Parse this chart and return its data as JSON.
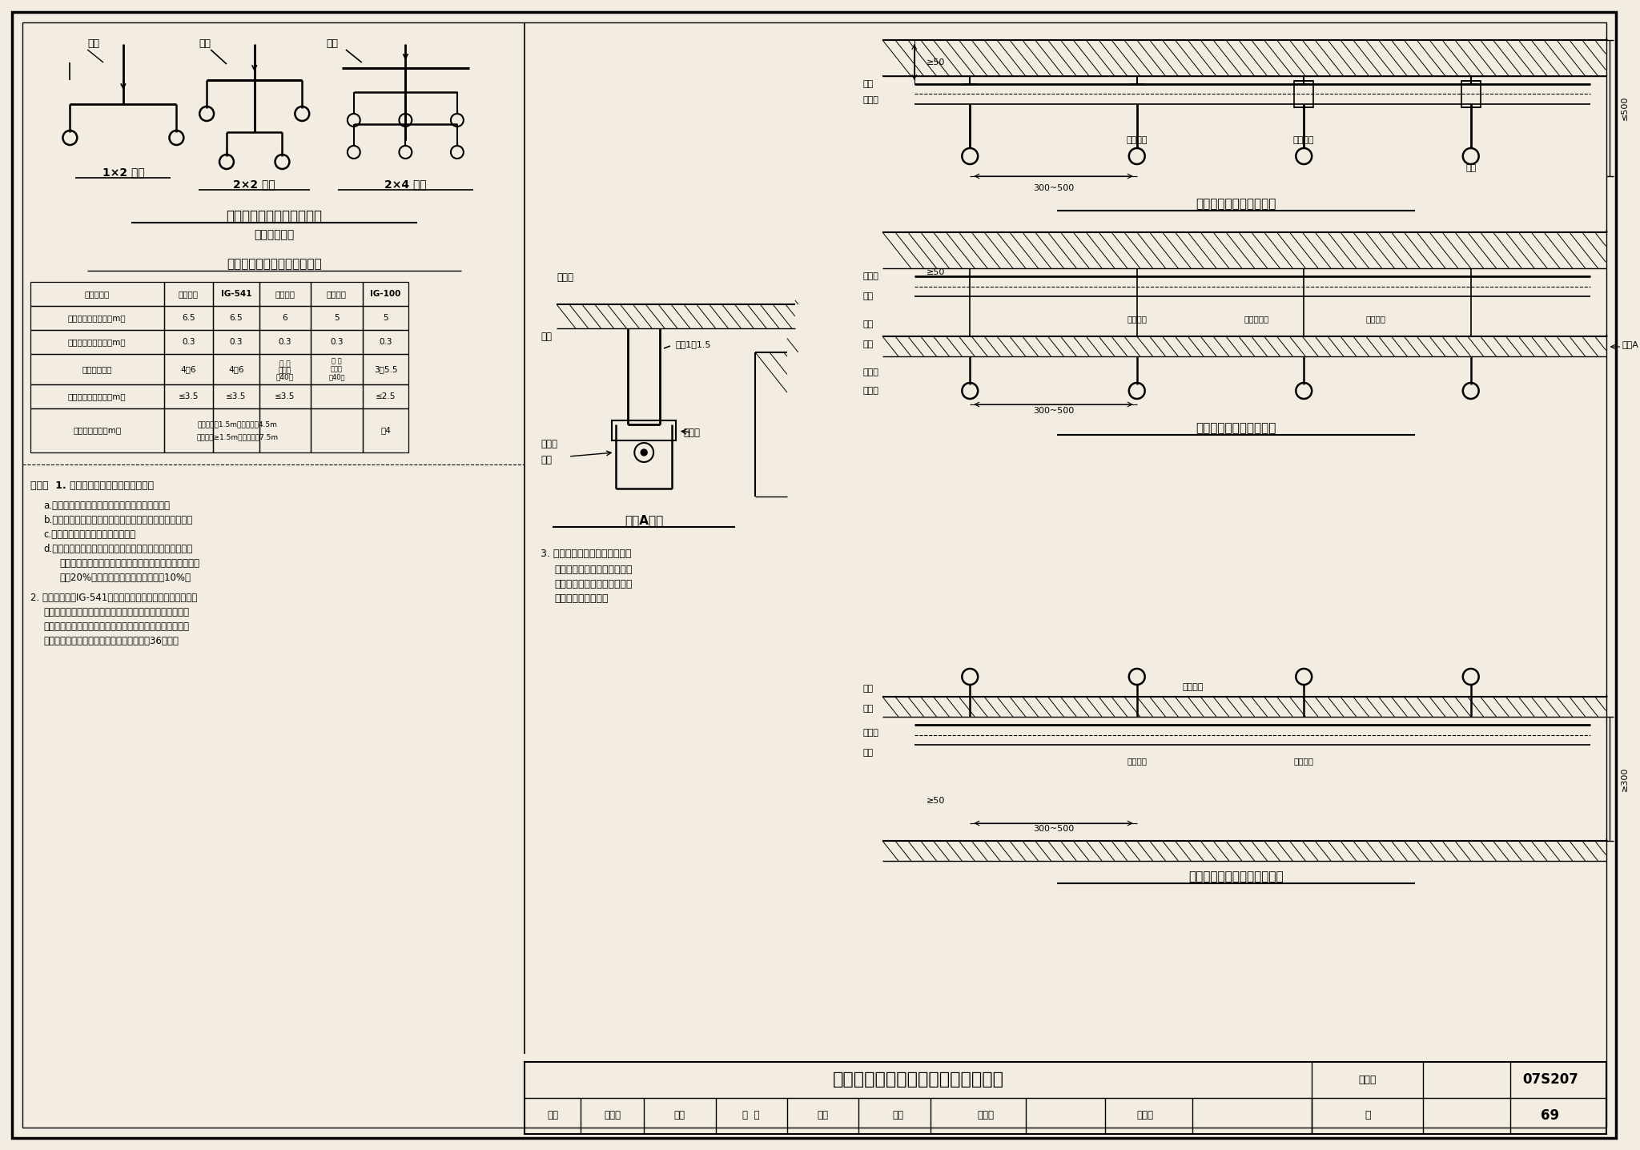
{
  "page_title": "全淹没气体灭火系统喷嘴布置与安装",
  "atlas_no": "07S207",
  "page_no": "69",
  "bg_color": "#f2ede0",
  "border_color": "#000000",
  "diagram_title1": "全淹没系统喷嘴布置示意图",
  "diagram_subtitle1": "（均衡管网）",
  "diagram_title2": "全淹没系统喷嘴布置主要参数",
  "diagram_title3": "节点A详图",
  "diagram_title4": "防护区无吊顶喷嘴安装图",
  "diagram_title5": "防护区有吊顶喷嘴安装图",
  "diagram_title6": "防护区架空地板内喷嘴安装图",
  "layout_labels": [
    "1×2 布置",
    "2×2 布置",
    "2×4 布置"
  ],
  "table_headers": [
    "灭火剂种类",
    "七氟丙烷",
    "IG-541",
    "三氟甲烷",
    "二氧化碳",
    "IG-100"
  ],
  "table_col_widths": [
    168,
    62,
    58,
    65,
    65,
    58
  ],
  "table_rows": [
    [
      "喷嘴最大保护高度（m）",
      "6.5",
      "6.5",
      "6",
      "5",
      "5"
    ],
    [
      "喷嘴最小保护高度（m）",
      "0.3",
      "0.3",
      "0.3",
      "0.3",
      "0.3"
    ],
    [
      "喷嘴布置间距",
      "4～6",
      "4～6",
      "4～6",
      "详 见\n本图集\n第40页",
      "3～5.5"
    ],
    [
      "喷嘴至墙面的距离（m）",
      "≤3.5",
      "≤3.5",
      "≤3.5",
      "",
      "≤2.5"
    ],
    [
      "喷嘴保护半径（m）",
      "安装高度＜1.5m时不宜大于4.5m\n安装高度≥1.5m时不应大于7.5m",
      "",
      "",
      "",
      "＜4"
    ]
  ],
  "text_color": "#000000"
}
